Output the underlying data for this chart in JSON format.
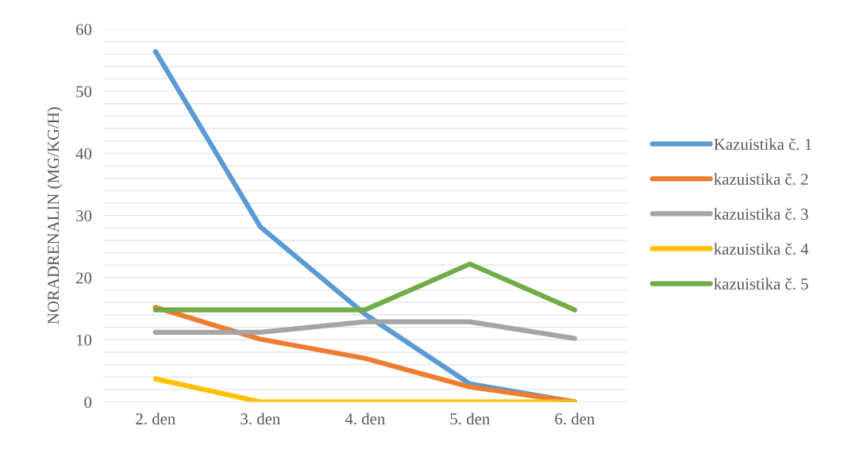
{
  "chart_data": {
    "type": "line",
    "ylabel": "NORADRENALIN (MG/KG/H)",
    "categories": [
      "2. den",
      "3. den",
      "4. den",
      "5. den",
      "6. den"
    ],
    "series": [
      {
        "name": "Kazuistika č. 1",
        "color": "#5b9bd5",
        "values": [
          56.4,
          28.2,
          14.1,
          2.9,
          0
        ]
      },
      {
        "name": "kazuistika č. 2",
        "color": "#ed7d31",
        "values": [
          15.2,
          10.1,
          7.0,
          2.4,
          0
        ]
      },
      {
        "name": "kazuistika č. 3",
        "color": "#a5a5a5",
        "values": [
          11.2,
          11.2,
          12.9,
          12.9,
          10.2
        ]
      },
      {
        "name": "kazuistika č. 4",
        "color": "#ffc000",
        "values": [
          3.7,
          0,
          0,
          0,
          0
        ]
      },
      {
        "name": "kazuistika č. 5",
        "color": "#70ad47",
        "values": [
          14.8,
          14.8,
          14.8,
          22.2,
          14.8
        ]
      }
    ],
    "ylim": [
      0,
      60
    ],
    "yticks": [
      0,
      {
        "value": 2,
        "label": null
      },
      {
        "value": 4,
        "label": null
      },
      {
        "value": 6,
        "label": null
      },
      {
        "value": 8,
        "label": null
      },
      10,
      {
        "value": 12,
        "label": null
      },
      {
        "value": 14,
        "label": null
      },
      {
        "value": 16,
        "label": null
      },
      {
        "value": 18,
        "label": null
      },
      20,
      {
        "value": 22,
        "label": null
      },
      {
        "value": 24,
        "label": null
      },
      {
        "value": 26,
        "label": null
      },
      {
        "value": 28,
        "label": null
      },
      30,
      {
        "value": 32,
        "label": null
      },
      {
        "value": 34,
        "label": null
      },
      {
        "value": 36,
        "label": null
      },
      {
        "value": 38,
        "label": null
      },
      40,
      {
        "value": 42,
        "label": null
      },
      {
        "value": 44,
        "label": null
      },
      {
        "value": 46,
        "label": null
      },
      {
        "value": 48,
        "label": null
      },
      50,
      {
        "value": 52,
        "label": null
      },
      {
        "value": 54,
        "label": null
      },
      {
        "value": 56,
        "label": null
      },
      {
        "value": 58,
        "label": null
      },
      60
    ],
    "grid": "y",
    "legend": "right",
    "marker": "none",
    "line_style": "solid"
  }
}
